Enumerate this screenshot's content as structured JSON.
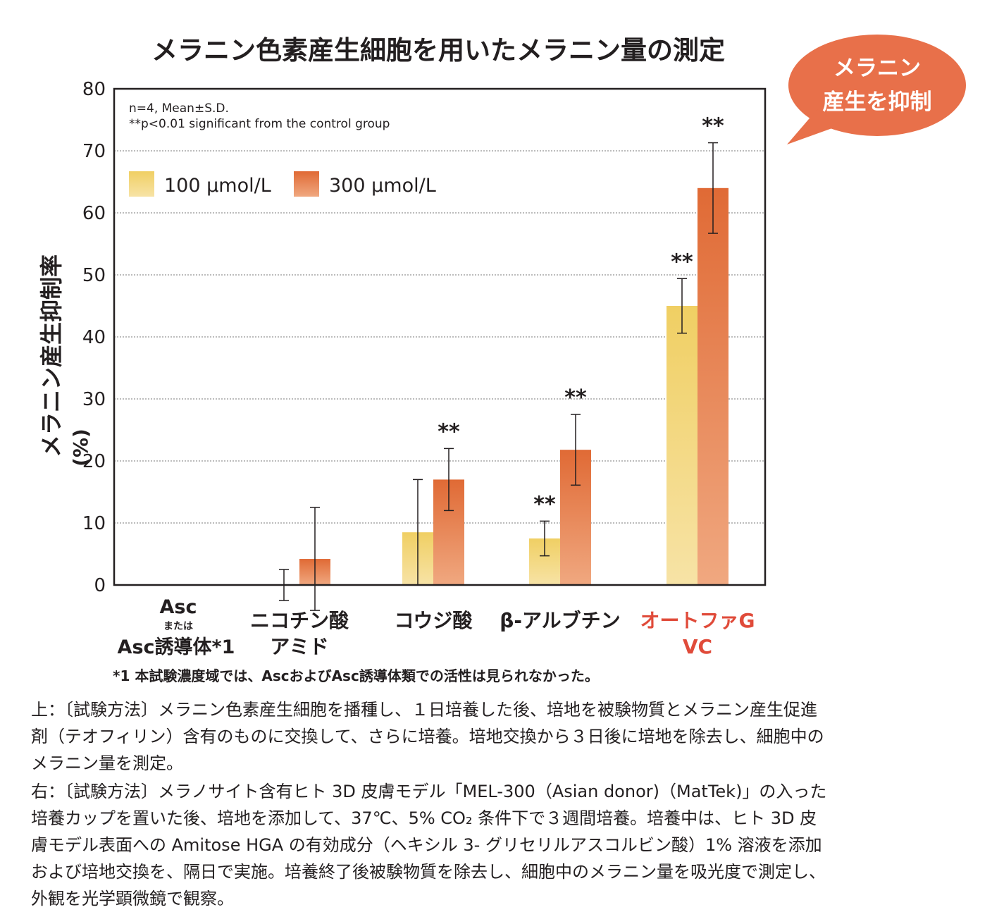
{
  "badge": {
    "line1": "メラニン",
    "line2": "産生を抑制",
    "color": "#e8704a"
  },
  "colors": {
    "series1_top": "#f0cf63",
    "series1_bottom": "#f7e3a6",
    "series2_top": "#e06a35",
    "series2_bottom": "#f0a880",
    "highlight_label": "#e04b3a"
  },
  "chart_data": {
    "type": "bar",
    "title": "メラニン色素産生細胞を用いたメラニン量の測定",
    "ylabel": "メラニン産生抑制率",
    "ylabel_unit": "(%)",
    "ylim": [
      0,
      80
    ],
    "yticks": [
      "0",
      "10",
      "20",
      "30",
      "40",
      "50",
      "60",
      "70",
      "80"
    ],
    "grid": true,
    "notes": [
      "n=4, Mean±S.D.",
      "**p<0.01  significant from the control group"
    ],
    "categories": [
      {
        "lines": [
          "Asc",
          "または",
          "Asc誘導体*1"
        ],
        "highlight": false
      },
      {
        "lines": [
          "ニコチン酸",
          "アミド"
        ],
        "highlight": false
      },
      {
        "lines": [
          "コウジ酸"
        ],
        "highlight": false
      },
      {
        "lines": [
          "β-アルブチン"
        ],
        "highlight": false
      },
      {
        "lines": [
          "オートファG",
          "VC"
        ],
        "highlight": true
      }
    ],
    "series": [
      {
        "name": "100 μmol/L",
        "values": [
          0,
          0,
          8.5,
          7.5,
          45
        ],
        "errors": [
          0,
          2.5,
          8.5,
          2.8,
          4.4
        ],
        "sig": [
          "",
          "",
          "",
          "**",
          "**"
        ]
      },
      {
        "name": "300 μmol/L",
        "values": [
          0,
          4.2,
          17,
          21.8,
          64
        ],
        "errors": [
          0,
          8.3,
          5,
          5.7,
          7.3
        ],
        "sig": [
          "",
          "",
          "**",
          "**",
          "**"
        ]
      }
    ],
    "footnote": "*1  本試験濃度域では、AscおよびAsc誘導体類での活性は見られなかった。"
  },
  "paragraphs": [
    "上：〔試験方法〕メラニン色素産生細胞を播種し、１日培養した後、培地を被験物質とメラニン産生促進剤（テオフィリン）含有のものに交換して、さらに培養。培地交換から３日後に培地を除去し、細胞中のメラニン量を測定。",
    "右：〔試験方法〕メラノサイト含有ヒト 3D 皮膚モデル「MEL-300（Asian donor)（MatTek)」の入った培養カップを置いた後、培地を添加して、37℃、5% CO₂ 条件下で３週間培養。培養中は、ヒト 3D 皮膚モデル表面への Amitose HGA の有効成分（ヘキシル 3- グリセリルアスコルビン酸）1% 溶液を添加および培地交換を、隔日で実施。培養終了後被験物質を除去し、細胞中のメラニン量を吸光度で測定し、外観を光学顕微鏡で観察。"
  ]
}
